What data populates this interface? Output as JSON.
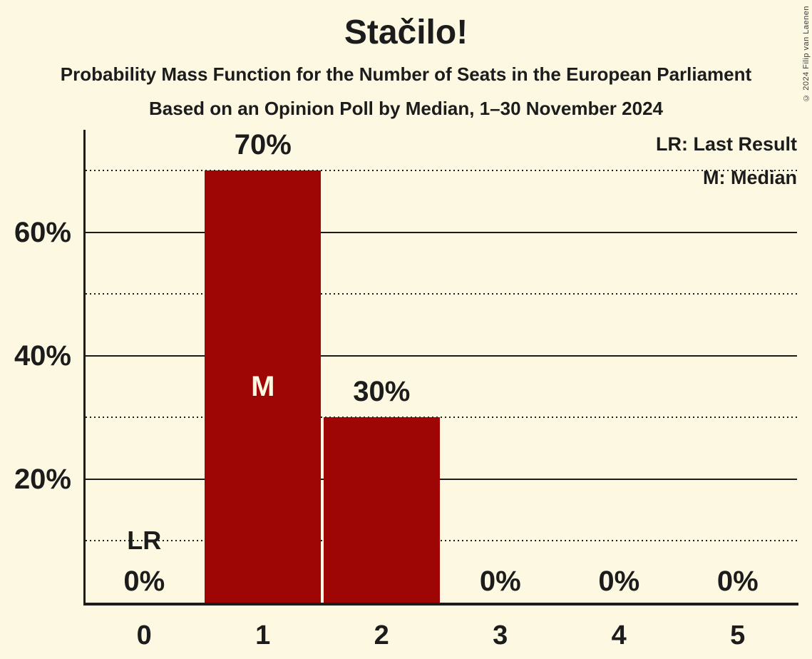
{
  "header": {
    "title": "Stačilo!",
    "subtitle": "Probability Mass Function for the Number of Seats in the European Parliament",
    "poll_details": "Based on an Opinion Poll by Median, 1–30 November 2024"
  },
  "copyright": "© 2024 Filip van Laenen",
  "legend": {
    "last_result": "LR: Last Result",
    "median": "M: Median"
  },
  "colors": {
    "background": "#FCF8E1",
    "bar": "#9E0505",
    "ink": "#1C1C1C",
    "bar_marker_text": "#FCF8E1"
  },
  "chart_data": {
    "type": "bar",
    "title": "Stačilo!",
    "categories": [
      "0",
      "1",
      "2",
      "3",
      "4",
      "5"
    ],
    "values": [
      0,
      70,
      30,
      0,
      0,
      0
    ],
    "bar_labels": [
      "0%",
      "70%",
      "30%",
      "0%",
      "0%",
      "0%"
    ],
    "xlabel": "",
    "ylabel": "",
    "ylim": [
      0,
      76.6
    ],
    "y_tick_labels": [
      {
        "value": 20,
        "label": "20%"
      },
      {
        "value": 40,
        "label": "40%"
      },
      {
        "value": 60,
        "label": "60%"
      }
    ],
    "y_solid_gridlines": [
      20,
      40,
      60
    ],
    "y_dotted_gridlines": [
      10,
      30,
      50,
      70
    ],
    "grid": "horizontal-only",
    "legend_position": "top-right",
    "markers": [
      {
        "text": "M",
        "meaning": "Median",
        "category": "1",
        "y_percent": 35
      },
      {
        "text": "LR",
        "meaning": "Last Result",
        "category": "0",
        "y_percent": 10
      }
    ]
  }
}
